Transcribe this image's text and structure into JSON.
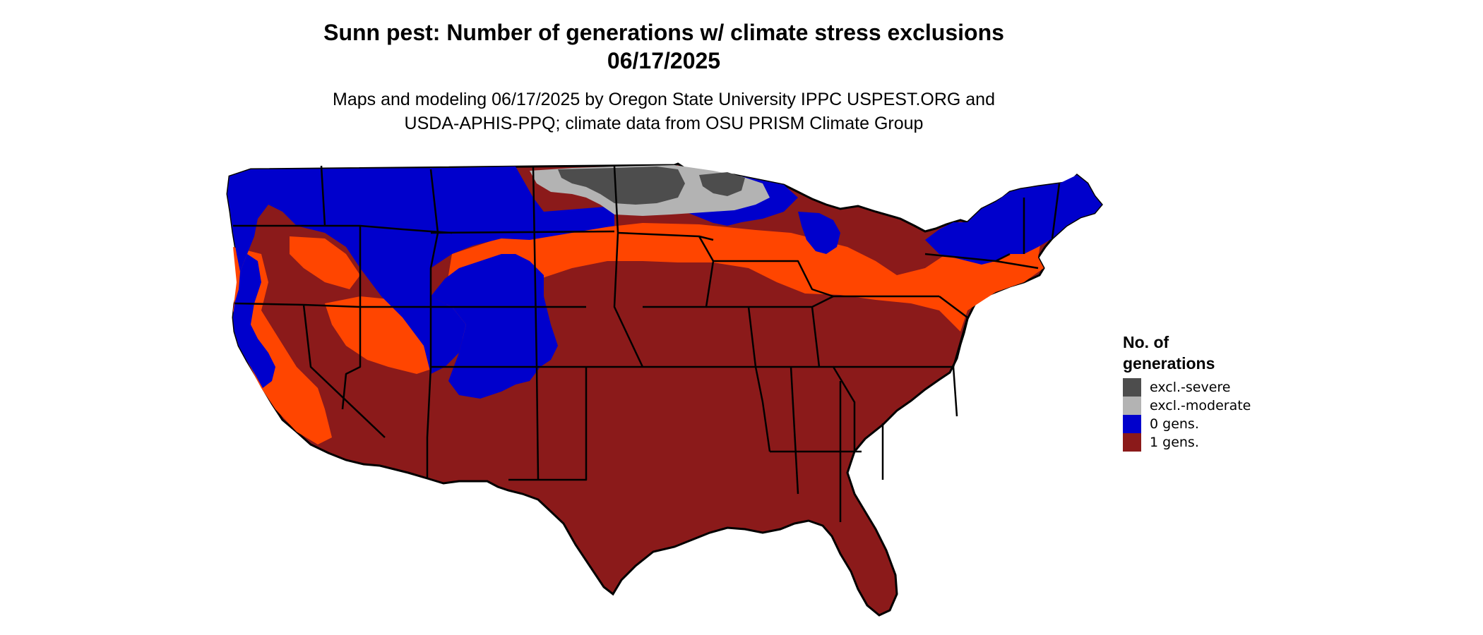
{
  "title_line1": "Sunn pest: Number of generations w/ climate stress exclusions",
  "title_line2": "06/17/2025",
  "subtitle_line1": "Maps and modeling 06/17/2025 by Oregon State University IPPC USPEST.ORG and",
  "subtitle_line2": "USDA-APHIS-PPQ; climate data from OSU PRISM Climate Group",
  "legend": {
    "title_line1": "No. of",
    "title_line2": "generations",
    "items": [
      {
        "label": "excl.-severe",
        "color": "#4d4d4d"
      },
      {
        "label": "excl.-moderate",
        "color": "#b3b3b3"
      },
      {
        "label": "0 gens.",
        "color": "#0000cc"
      },
      {
        "label": "1 gens.",
        "color": "#8b1a1a"
      }
    ]
  },
  "colors": {
    "transition": "#ff4500",
    "state_borders": "#000000"
  }
}
